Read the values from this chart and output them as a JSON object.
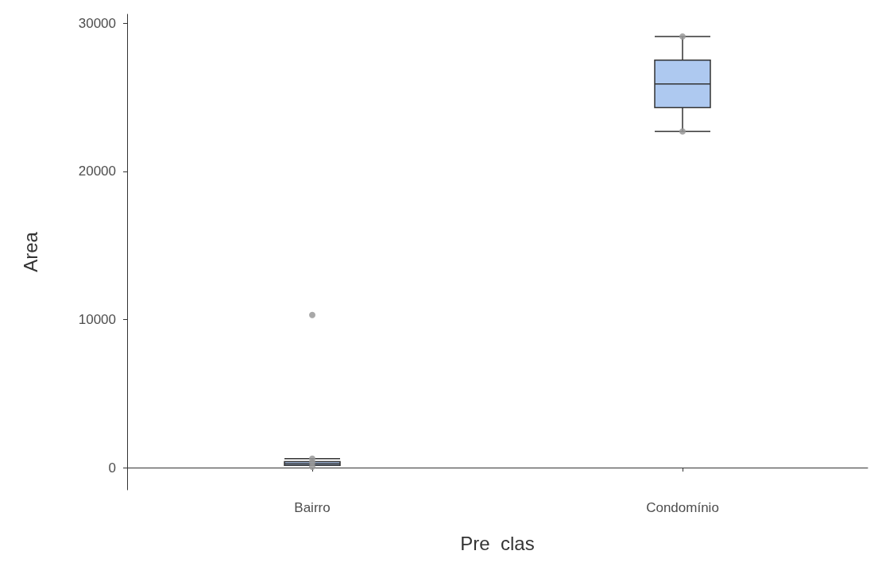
{
  "chart_data": {
    "type": "box",
    "xlabel": "Pre  clas",
    "ylabel": "Area",
    "categories": [
      "Bairro",
      "Condomínio"
    ],
    "series": [
      {
        "color": "#aec9f0",
        "boxes": [
          {
            "low": 150,
            "q1": 150,
            "median": 250,
            "q3": 400,
            "high": 600
          },
          {
            "low": 22700,
            "q1": 24300,
            "median": 25900,
            "q3": 27500,
            "high": 29100
          }
        ]
      },
      {
        "type": "scatter",
        "color": "#999999",
        "x": [
          "Bairro",
          "Bairro",
          "Bairro",
          "Bairro",
          "Condomínio",
          "Condomínio"
        ],
        "values": [
          350,
          600,
          50,
          10300,
          29100,
          22700
        ]
      }
    ],
    "ylim": [
      -1500,
      30600
    ],
    "yticks": [
      0,
      10000,
      20000,
      30000
    ],
    "grid": false,
    "marker": "circle"
  }
}
